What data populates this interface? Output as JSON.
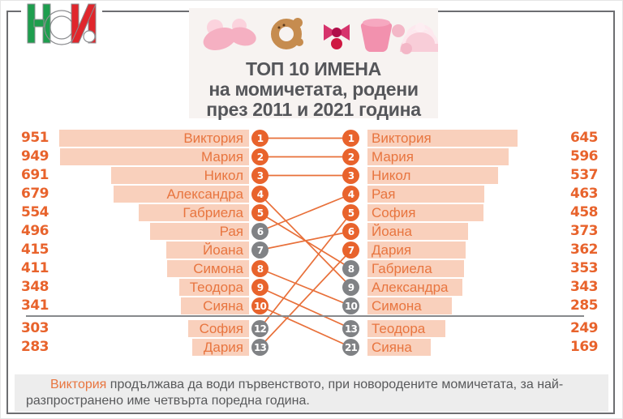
{
  "logo": {
    "name": "НСИ"
  },
  "banner": {
    "line1": "ТОП 10 ИМЕНА",
    "line2": "на момичетата, родени",
    "line3": "през 2011 и 2021 година"
  },
  "chart_data": {
    "type": "bar",
    "title": "ТОП 10 ИМЕНА на момичетата, родени през 2011 и 2021 година",
    "orientation": "horizontal, mirrored slope chart (left = 2011, right = 2021)",
    "legend_position": "none",
    "separator_note": "gray horizontal line cuts off top 10 from lower-ranked rows",
    "series": [
      {
        "name": "2011",
        "side": "left",
        "rows": [
          {
            "rank": 1,
            "name": "Виктория",
            "value": 951,
            "circle": "orange"
          },
          {
            "rank": 2,
            "name": "Мария",
            "value": 949,
            "circle": "orange"
          },
          {
            "rank": 3,
            "name": "Никол",
            "value": 691,
            "circle": "orange"
          },
          {
            "rank": 4,
            "name": "Александра",
            "value": 679,
            "circle": "orange"
          },
          {
            "rank": 5,
            "name": "Габриела",
            "value": 554,
            "circle": "orange"
          },
          {
            "rank": 6,
            "name": "Рая",
            "value": 496,
            "circle": "gray"
          },
          {
            "rank": 7,
            "name": "Йоана",
            "value": 415,
            "circle": "gray"
          },
          {
            "rank": 8,
            "name": "Симона",
            "value": 411,
            "circle": "orange"
          },
          {
            "rank": 9,
            "name": "Теодора",
            "value": 348,
            "circle": "orange"
          },
          {
            "rank": 10,
            "name": "Сияна",
            "value": 341,
            "circle": "orange"
          },
          {
            "rank": 12,
            "name": "София",
            "value": 303,
            "circle": "gray"
          },
          {
            "rank": 13,
            "name": "Дария",
            "value": 283,
            "circle": "gray"
          }
        ]
      },
      {
        "name": "2021",
        "side": "right",
        "rows": [
          {
            "rank": 1,
            "name": "Виктория",
            "value": 645,
            "circle": "orange"
          },
          {
            "rank": 2,
            "name": "Мария",
            "value": 596,
            "circle": "orange"
          },
          {
            "rank": 3,
            "name": "Никол",
            "value": 537,
            "circle": "orange"
          },
          {
            "rank": 4,
            "name": "Рая",
            "value": 463,
            "circle": "orange"
          },
          {
            "rank": 5,
            "name": "София",
            "value": 458,
            "circle": "orange"
          },
          {
            "rank": 6,
            "name": "Йоана",
            "value": 373,
            "circle": "orange"
          },
          {
            "rank": 7,
            "name": "Дария",
            "value": 362,
            "circle": "orange"
          },
          {
            "rank": 8,
            "name": "Габриела",
            "value": 353,
            "circle": "gray"
          },
          {
            "rank": 9,
            "name": "Александра",
            "value": 343,
            "circle": "gray"
          },
          {
            "rank": 10,
            "name": "Симона",
            "value": 285,
            "circle": "gray"
          },
          {
            "rank": 13,
            "name": "Теодора",
            "value": 249,
            "circle": "gray"
          },
          {
            "rank": 21,
            "name": "Сияна",
            "value": 169,
            "circle": "gray"
          }
        ]
      }
    ]
  },
  "footer": {
    "highlight": "Виктория",
    "rest": " продължава да води първенството, при новородените момичетата, за най-разпространено име четвърта поредна година."
  },
  "colors": {
    "accent_orange": "#e8632c",
    "name_orange": "#e8753f",
    "bar_fill": "#f9d0bc",
    "gray_circle": "#808285",
    "link_line": "#e8703a",
    "frame": "#6d6e71",
    "title_text": "#55565a",
    "footer_bg": "#ededed"
  }
}
